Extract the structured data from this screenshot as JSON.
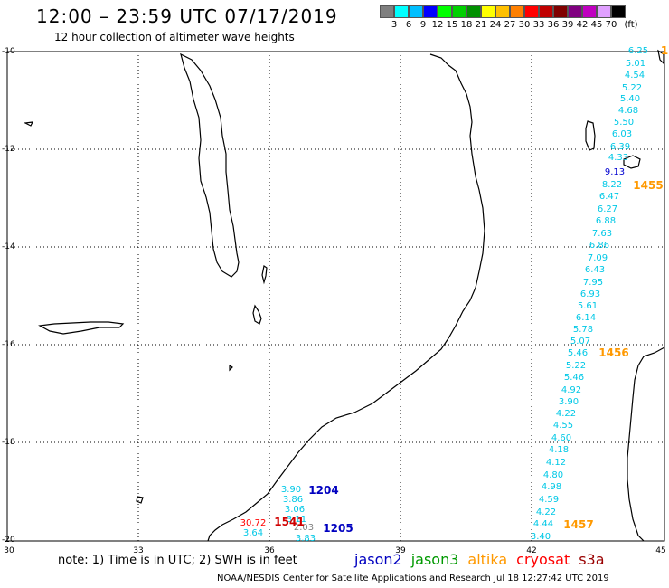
{
  "header": {
    "title": "12:00 – 23:59 UTC 07/17/2019",
    "subtitle": "12 hour collection of altimeter wave heights"
  },
  "colorbar": {
    "colors": [
      "#7f7f7f",
      "#00ffff",
      "#00bfff",
      "#0000ff",
      "#00ff00",
      "#00d000",
      "#009000",
      "#ffff00",
      "#ffc000",
      "#ff8000",
      "#ff0000",
      "#c00000",
      "#800000",
      "#800080",
      "#c000c0",
      "#e0a0ff",
      "#000000"
    ],
    "labels": [
      "3",
      "6",
      "9",
      "12",
      "15",
      "18",
      "21",
      "24",
      "27",
      "30",
      "33",
      "36",
      "39",
      "42",
      "45",
      "70",
      "(ft)"
    ]
  },
  "axes": {
    "lat_labels": [
      "-10",
      "-12",
      "-14",
      "-16",
      "-18",
      "-20"
    ],
    "lon_labels": [
      "30",
      "33",
      "36",
      "39",
      "42",
      "45"
    ]
  },
  "track_points": [
    {
      "label": "6.25",
      "color": "#00c8e6"
    },
    {
      "label": "5.01",
      "color": "#00c8e6"
    },
    {
      "label": "4.54",
      "color": "#00c8e6"
    },
    {
      "label": "5.22",
      "color": "#00c8e6"
    },
    {
      "label": "5.40",
      "color": "#00c8e6"
    },
    {
      "label": "4.68",
      "color": "#00c8e6"
    },
    {
      "label": "5.50",
      "color": "#00c8e6"
    },
    {
      "label": "6.03",
      "color": "#00c8e6"
    },
    {
      "label": "6.39",
      "color": "#00c8e6"
    },
    {
      "label": "4.33",
      "color": "#00c8e6"
    },
    {
      "label": "9.13",
      "color": "#0000d0"
    },
    {
      "label": "8.22",
      "color": "#00c8e6"
    },
    {
      "label": "6.47",
      "color": "#00c8e6"
    },
    {
      "label": "6.27",
      "color": "#00c8e6"
    },
    {
      "label": "6.88",
      "color": "#00c8e6"
    },
    {
      "label": "7.63",
      "color": "#00c8e6"
    },
    {
      "label": "6.86",
      "color": "#00c8e6"
    },
    {
      "label": "7.09",
      "color": "#00c8e6"
    },
    {
      "label": "6.43",
      "color": "#00c8e6"
    },
    {
      "label": "7.95",
      "color": "#00c8e6"
    },
    {
      "label": "6.93",
      "color": "#00c8e6"
    },
    {
      "label": "5.61",
      "color": "#00c8e6"
    },
    {
      "label": "6.14",
      "color": "#00c8e6"
    },
    {
      "label": "5.78",
      "color": "#00c8e6"
    },
    {
      "label": "5.07",
      "color": "#00c8e6"
    },
    {
      "label": "5.46",
      "color": "#00c8e6"
    },
    {
      "label": "5.22",
      "color": "#00c8e6"
    },
    {
      "label": "5.46",
      "color": "#00c8e6"
    },
    {
      "label": "4.92",
      "color": "#00c8e6"
    },
    {
      "label": "3.90",
      "color": "#00c8e6"
    },
    {
      "label": "4.22",
      "color": "#00c8e6"
    },
    {
      "label": "4.55",
      "color": "#00c8e6"
    },
    {
      "label": "4.60",
      "color": "#00c8e6"
    },
    {
      "label": "4.18",
      "color": "#00c8e6"
    },
    {
      "label": "4.12",
      "color": "#00c8e6"
    },
    {
      "label": "4.80",
      "color": "#00c8e6"
    },
    {
      "label": "4.98",
      "color": "#00c8e6"
    },
    {
      "label": "4.59",
      "color": "#00c8e6"
    },
    {
      "label": "4.22",
      "color": "#00c8e6"
    },
    {
      "label": "4.44",
      "color": "#00c8e6"
    },
    {
      "label": "3.40",
      "color": "#00c8e6"
    },
    {
      "label": "3.90",
      "color": "#00c8e6"
    },
    {
      "label": "3.86",
      "color": "#00c8e6"
    },
    {
      "label": "3.06",
      "color": "#00c8e6"
    },
    {
      "label": "3.11",
      "color": "#00c8e6"
    },
    {
      "label": "3.64",
      "color": "#00c8e6"
    },
    {
      "label": "3.83",
      "color": "#00c8e6"
    },
    {
      "label": "2.03",
      "color": "#808080"
    },
    {
      "label": "30.72",
      "color": "#ff0000"
    },
    {
      "label": "1541",
      "color": "#d00000"
    }
  ],
  "pass_labels": [
    {
      "label": "1",
      "color": "#ff9900"
    },
    {
      "label": "1455",
      "color": "#ff9900"
    },
    {
      "label": "1456",
      "color": "#ff9900"
    },
    {
      "label": "1457",
      "color": "#ff9900"
    },
    {
      "label": "1204",
      "color": "#0000c0"
    },
    {
      "label": "1205",
      "color": "#0000c0"
    }
  ],
  "footer": {
    "note": "note:  1) Time is in UTC;  2) SWH is in feet",
    "legend": [
      {
        "label": "jason2",
        "color": "#0000c0"
      },
      {
        "label": "jason3",
        "color": "#009900"
      },
      {
        "label": "altika",
        "color": "#ff9900"
      },
      {
        "label": "cryosat",
        "color": "#ff0000"
      },
      {
        "label": "s3a",
        "color": "#990000"
      }
    ],
    "credit": "NOAA/NESDIS Center for Satellite Applications and Research    Jul 18 12:27:42 UTC 2019"
  }
}
